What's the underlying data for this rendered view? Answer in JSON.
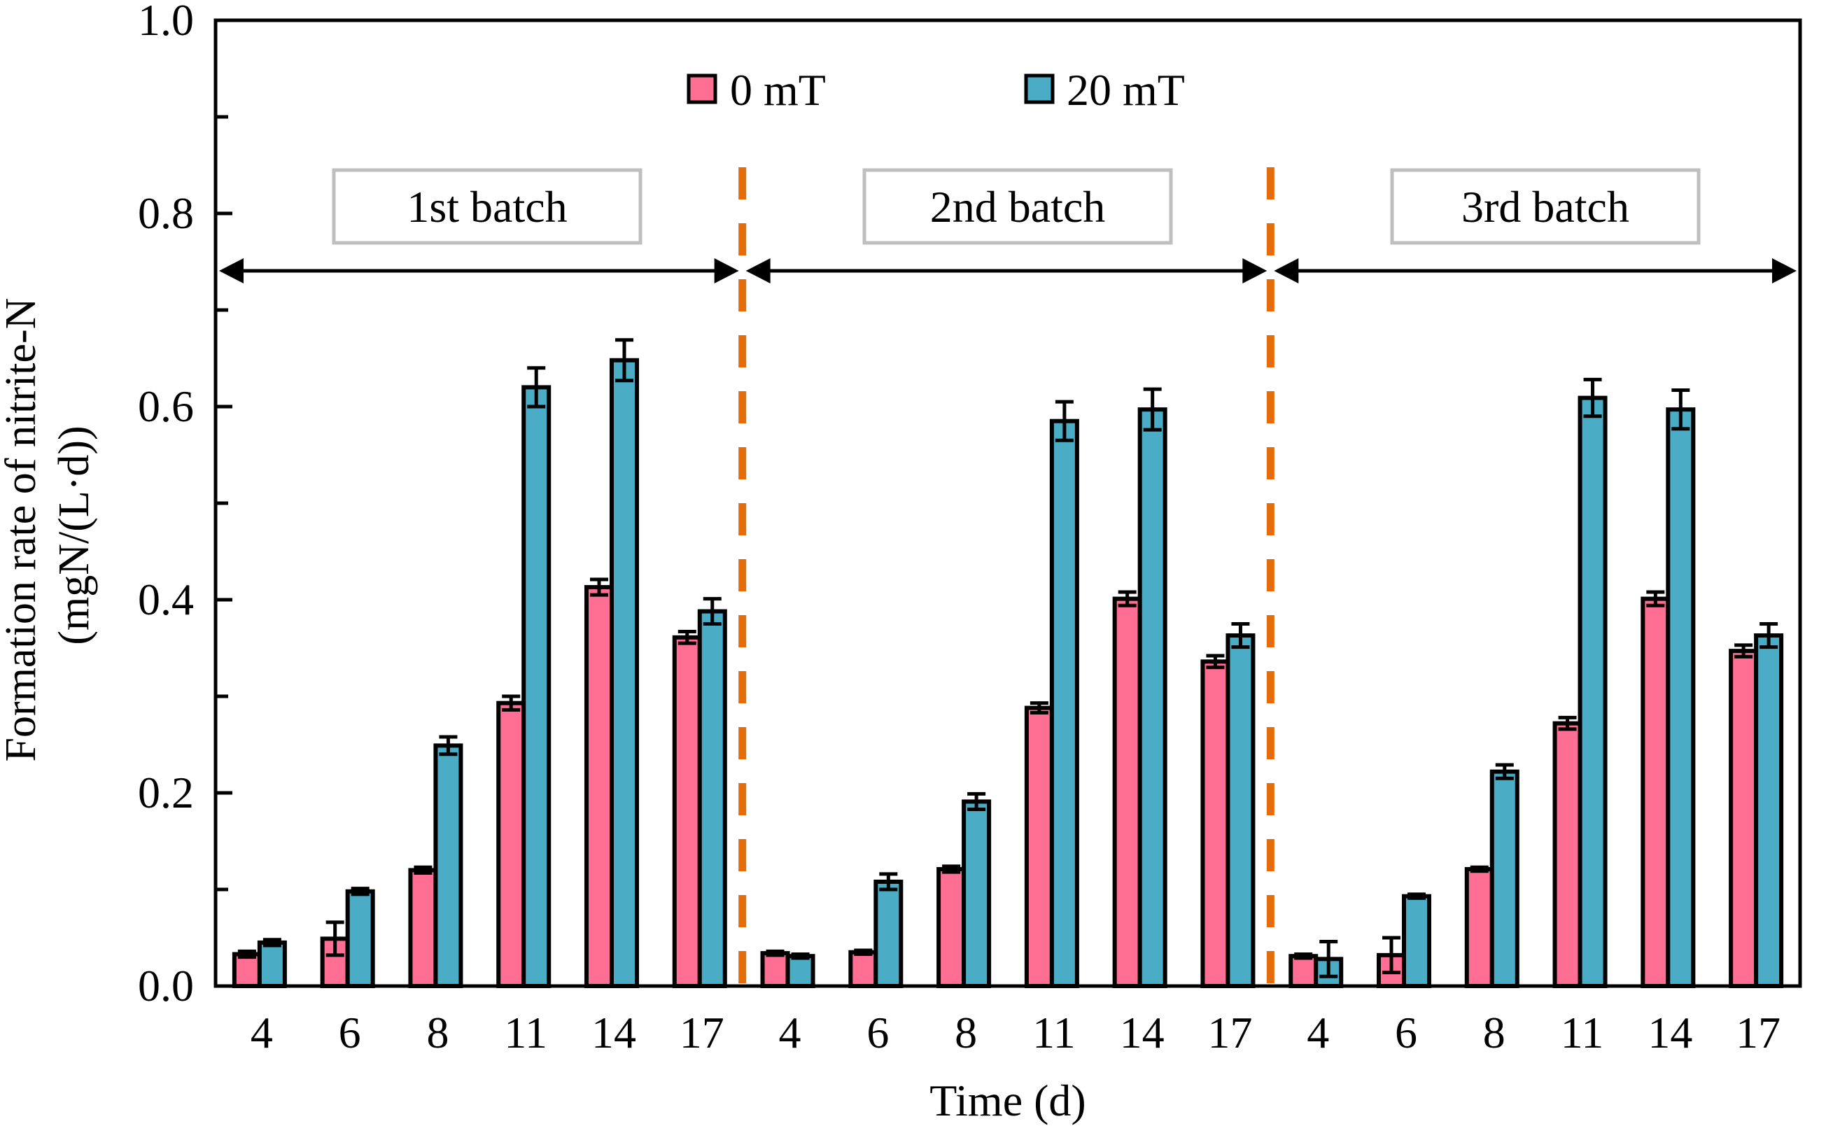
{
  "chart_data": {
    "type": "bar",
    "title": "",
    "xlabel": "Time (d)",
    "ylabel_lines": [
      "Formation rate of nitrite-N",
      "(mgN/(L·d))"
    ],
    "ylim": [
      0,
      1.0
    ],
    "yticks": [
      "0.0",
      "0.2",
      "0.4",
      "0.6",
      "0.8",
      "1.0"
    ],
    "ytick_values": [
      0,
      0.2,
      0.4,
      0.6,
      0.8,
      1.0
    ],
    "minor_ytick_step": 0.1,
    "grid": false,
    "legend_position": "top-center",
    "categories": [
      "4",
      "6",
      "8",
      "11",
      "14",
      "17",
      "4",
      "6",
      "8",
      "11",
      "14",
      "17",
      "4",
      "6",
      "8",
      "11",
      "14",
      "17"
    ],
    "series": [
      {
        "name": "0 mT",
        "color": "#FF6E93",
        "values": [
          0.033,
          0.049,
          0.12,
          0.293,
          0.413,
          0.361,
          0.034,
          0.035,
          0.121,
          0.288,
          0.401,
          0.336,
          0.031,
          0.032,
          0.121,
          0.272,
          0.401,
          0.347
        ],
        "errors": [
          0.003,
          0.017,
          0.003,
          0.007,
          0.008,
          0.006,
          0.002,
          0.002,
          0.003,
          0.005,
          0.007,
          0.006,
          0.002,
          0.018,
          0.002,
          0.006,
          0.007,
          0.006
        ]
      },
      {
        "name": "20 mT",
        "color": "#4BACC6",
        "values": [
          0.045,
          0.098,
          0.249,
          0.62,
          0.648,
          0.388,
          0.031,
          0.108,
          0.191,
          0.585,
          0.597,
          0.363,
          0.028,
          0.093,
          0.222,
          0.609,
          0.597,
          0.363
        ],
        "errors": [
          0.003,
          0.003,
          0.009,
          0.02,
          0.021,
          0.013,
          0.002,
          0.008,
          0.008,
          0.02,
          0.021,
          0.012,
          0.018,
          0.002,
          0.007,
          0.019,
          0.02,
          0.012
        ]
      }
    ],
    "batches": [
      {
        "label": "1st batch",
        "start_index": 0,
        "end_index": 5
      },
      {
        "label": "2nd batch",
        "start_index": 6,
        "end_index": 11
      },
      {
        "label": "3rd batch",
        "start_index": 12,
        "end_index": 17
      }
    ],
    "separator_color": "#E46C0A",
    "batch_box_border_color": "#BFBFBF"
  }
}
